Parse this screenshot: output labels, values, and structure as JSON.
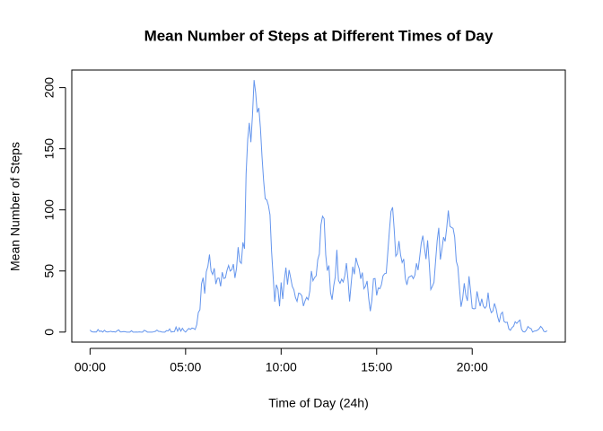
{
  "chart_data": {
    "type": "line",
    "title": "Mean Number of Steps at Different Times of Day",
    "x_label": "Time of Day (24h)",
    "y_label": "Mean Number of Steps",
    "x": [
      0,
      5,
      10,
      15,
      20,
      25,
      30,
      35,
      40,
      45,
      50,
      55,
      60,
      65,
      70,
      75,
      80,
      85,
      90,
      95,
      100,
      105,
      110,
      115,
      120,
      125,
      130,
      135,
      140,
      145,
      150,
      155,
      160,
      165,
      170,
      175,
      180,
      185,
      190,
      195,
      200,
      205,
      210,
      215,
      220,
      225,
      230,
      235,
      240,
      245,
      250,
      255,
      260,
      265,
      270,
      275,
      280,
      285,
      290,
      295,
      300,
      305,
      310,
      315,
      320,
      325,
      330,
      335,
      340,
      345,
      350,
      355,
      360,
      365,
      370,
      375,
      380,
      385,
      390,
      395,
      400,
      405,
      410,
      415,
      420,
      425,
      430,
      435,
      440,
      445,
      450,
      455,
      460,
      465,
      470,
      475,
      480,
      485,
      490,
      495,
      500,
      505,
      510,
      515,
      520,
      525,
      530,
      535,
      540,
      545,
      550,
      555,
      560,
      565,
      570,
      575,
      580,
      585,
      590,
      595,
      600,
      605,
      610,
      615,
      620,
      625,
      630,
      635,
      640,
      645,
      650,
      655,
      660,
      665,
      670,
      675,
      680,
      685,
      690,
      695,
      700,
      705,
      710,
      715,
      720,
      725,
      730,
      735,
      740,
      745,
      750,
      755,
      760,
      765,
      770,
      775,
      780,
      785,
      790,
      795,
      800,
      805,
      810,
      815,
      820,
      825,
      830,
      835,
      840,
      845,
      850,
      855,
      860,
      865,
      870,
      875,
      880,
      885,
      890,
      895,
      900,
      905,
      910,
      915,
      920,
      925,
      930,
      935,
      940,
      945,
      950,
      955,
      960,
      965,
      970,
      975,
      980,
      985,
      990,
      995,
      1000,
      1005,
      1010,
      1015,
      1020,
      1025,
      1030,
      1035,
      1040,
      1045,
      1050,
      1055,
      1060,
      1065,
      1070,
      1075,
      1080,
      1085,
      1090,
      1095,
      1100,
      1105,
      1110,
      1115,
      1120,
      1125,
      1130,
      1135,
      1140,
      1145,
      1150,
      1155,
      1160,
      1165,
      1170,
      1175,
      1180,
      1185,
      1190,
      1195,
      1200,
      1205,
      1210,
      1215,
      1220,
      1225,
      1230,
      1235,
      1240,
      1245,
      1250,
      1255,
      1260,
      1265,
      1270,
      1275,
      1280,
      1285,
      1290,
      1295,
      1300,
      1305,
      1310,
      1315,
      1320,
      1325,
      1330,
      1335,
      1340,
      1345,
      1350,
      1355,
      1360,
      1365,
      1370,
      1375,
      1380,
      1385,
      1390,
      1395,
      1400,
      1405,
      1410,
      1415,
      1420,
      1425,
      1430,
      1435
    ],
    "series": [
      {
        "color": "#6495ed",
        "values": [
          1.7,
          0.3,
          0.1,
          0.2,
          0.1,
          2.1,
          0.5,
          0.9,
          0,
          1.5,
          0.3,
          0.1,
          0.3,
          0.7,
          0.2,
          0.3,
          0,
          1.1,
          1.8,
          0.2,
          0.2,
          0.4,
          0.3,
          0,
          0,
          0,
          1.1,
          0,
          0,
          0.1,
          0,
          0.2,
          0,
          0,
          1.5,
          0.9,
          0,
          0,
          0,
          0,
          0.2,
          0.6,
          1.6,
          0.6,
          0.5,
          0.1,
          0,
          0,
          1.2,
          0.9,
          2.6,
          0,
          0.3,
          0.4,
          4.1,
          0.7,
          3.5,
          0.8,
          3.1,
          1.1,
          0,
          1.6,
          3,
          2.2,
          3.3,
          3,
          2.1,
          6.1,
          16,
          18.3,
          39.5,
          44.5,
          31.5,
          49.3,
          53.8,
          63.5,
          50,
          47.1,
          52.2,
          39.3,
          44,
          44.2,
          37.4,
          49,
          43.8,
          44.4,
          50.5,
          54.5,
          49.9,
          51,
          55.7,
          44.3,
          52.3,
          69.5,
          57.8,
          56.2,
          73.4,
          68.2,
          129.4,
          157.5,
          171.2,
          155.4,
          177.3,
          206.2,
          195.9,
          179.6,
          183.4,
          167,
          143.5,
          124,
          109.1,
          108.1,
          103.7,
          96,
          66.2,
          45.2,
          24.8,
          38.8,
          35,
          21.1,
          40.6,
          27,
          42.4,
          52.7,
          38.9,
          50.8,
          44.3,
          37.4,
          34.7,
          28.3,
          25.1,
          31.9,
          31.4,
          29.7,
          21.3,
          25.5,
          28.4,
          26.5,
          33.4,
          50,
          42,
          44.6,
          46,
          59.2,
          63.9,
          87.7,
          94.8,
          92.8,
          63.4,
          50.2,
          54.5,
          32.4,
          26.5,
          37.7,
          45.1,
          67.3,
          42.3,
          39.9,
          43.3,
          41,
          46.2,
          56.4,
          42.8,
          25.1,
          40,
          53.5,
          47.3,
          60.8,
          55.8,
          52,
          43.6,
          48.7,
          35.5,
          37.5,
          41.8,
          27.5,
          17.1,
          26.1,
          43.6,
          43.8,
          30,
          36.1,
          35.5,
          38.8,
          46,
          47.8,
          48.1,
          65.3,
          82.9,
          98.7,
          102.1,
          84,
          62.1,
          64.1,
          74.5,
          63.2,
          56.9,
          59.8,
          43.9,
          38.6,
          44.7,
          45.5,
          46.2,
          43.7,
          46.6,
          56.3,
          50.7,
          61.2,
          72.7,
          78.9,
          68.9,
          59.7,
          75.1,
          56.5,
          34.8,
          37.5,
          40.7,
          58,
          74.7,
          85.3,
          59.3,
          67.8,
          77.7,
          74.2,
          85.3,
          99.5,
          86.6,
          85.6,
          84.9,
          77.8,
          58,
          53.4,
          36.3,
          20.7,
          27.4,
          40,
          30.2,
          25.5,
          45.7,
          33.5,
          19.6,
          19,
          19.3,
          33.3,
          26.8,
          21.2,
          27.3,
          21.3,
          19.5,
          21.3,
          32.3,
          20.2,
          15.9,
          17.2,
          23.5,
          19.2,
          12.5,
          8,
          14.7,
          16.3,
          8.7,
          7.8,
          8.1,
          2.6,
          1.5,
          3.7,
          4.8,
          8.5,
          7.1,
          8.7,
          9.8,
          2.2,
          0.3,
          0.1,
          1.6,
          4.6,
          3.3,
          2.8,
          0,
          0.8,
          1,
          1.6,
          2.6,
          4.7,
          3.3,
          0.6,
          0.2,
          1.1
        ]
      }
    ],
    "xlim": [
      -57.4,
      1492.4
    ],
    "xticks": [
      {
        "value": 0,
        "label": "00:00"
      },
      {
        "value": 300,
        "label": "05:00"
      },
      {
        "value": 600,
        "label": "10:00"
      },
      {
        "value": 900,
        "label": "15:00"
      },
      {
        "value": 1200,
        "label": "20:00"
      }
    ],
    "ylim": [
      -8.2,
      214.4
    ],
    "yticks": [
      0,
      50,
      100,
      150,
      200
    ]
  }
}
